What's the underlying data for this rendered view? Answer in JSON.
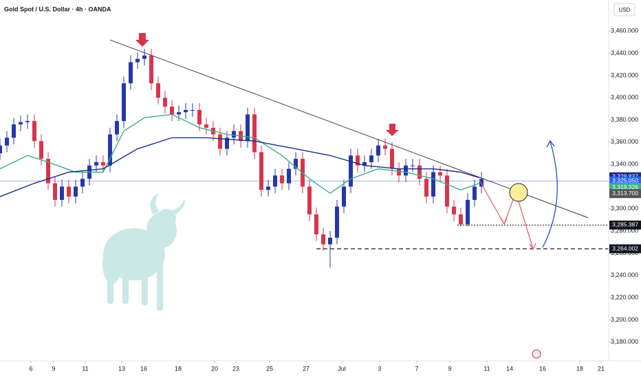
{
  "chart_data": {
    "type": "candlestick",
    "title": "Gold Spot / U.S. Dollar · 4h · OANDA",
    "currency": "USD",
    "up_color": "#2438a8",
    "down_color": "#d7354c",
    "xlim": [
      0,
      177
    ],
    "ylim": [
      3165,
      3488
    ],
    "xticks": [
      {
        "value": 9,
        "label": "6"
      },
      {
        "value": 15.6,
        "label": "9"
      },
      {
        "value": 24.8,
        "label": "11"
      },
      {
        "value": 35.4,
        "label": "13"
      },
      {
        "value": 41.8,
        "label": "16"
      },
      {
        "value": 51.8,
        "label": "18"
      },
      {
        "value": 62.4,
        "label": "20"
      },
      {
        "value": 68.6,
        "label": "23"
      },
      {
        "value": 78.4,
        "label": "25"
      },
      {
        "value": 89,
        "label": "27"
      },
      {
        "value": 99.4,
        "label": "Jul"
      },
      {
        "value": 110.4,
        "label": "3"
      },
      {
        "value": 121.2,
        "label": "7"
      },
      {
        "value": 130.8,
        "label": "9"
      },
      {
        "value": 141.6,
        "label": "11"
      },
      {
        "value": 148.2,
        "label": "14"
      },
      {
        "value": 157.8,
        "label": "16"
      },
      {
        "value": 168.6,
        "label": "18"
      },
      {
        "value": 174.8,
        "label": "21"
      }
    ],
    "yticks": [
      {
        "value": 3180,
        "label": "3,180.000"
      },
      {
        "value": 3200,
        "label": "3,200.000"
      },
      {
        "value": 3220,
        "label": "3,220.000"
      },
      {
        "value": 3240,
        "label": "3,240.000"
      },
      {
        "value": 3260,
        "label": "3,260.000"
      },
      {
        "value": 3280,
        "label": "3,280.000"
      },
      {
        "value": 3300,
        "label": "3,300.000"
      },
      {
        "value": 3320,
        "label": "3,320.000"
      },
      {
        "value": 3340,
        "label": "3,340.000"
      },
      {
        "value": 3360,
        "label": "3,360.000"
      },
      {
        "value": 3380,
        "label": "3,380.000"
      },
      {
        "value": 3400,
        "label": "3,400.000"
      },
      {
        "value": 3420,
        "label": "3,420.000"
      },
      {
        "value": 3440,
        "label": "3,440.000"
      },
      {
        "value": 3460,
        "label": "3,460.000"
      }
    ],
    "x": [
      0,
      2,
      4,
      6,
      8,
      10,
      12,
      14,
      16,
      18,
      20,
      22,
      24,
      26,
      28,
      30,
      32,
      34,
      36,
      38,
      40,
      42,
      44,
      46,
      48,
      50,
      52,
      54,
      56,
      58,
      60,
      62,
      64,
      66,
      68,
      70,
      72,
      74,
      76,
      78,
      80,
      82,
      84,
      86,
      88,
      90,
      92,
      94,
      96,
      98,
      100,
      102,
      104,
      106,
      108,
      110,
      112,
      114,
      116,
      118,
      120,
      122,
      124,
      126,
      128,
      130,
      132,
      134,
      136,
      138,
      140
    ],
    "open": [
      3350,
      3357,
      3364,
      3376,
      3378,
      3379,
      3361,
      3345,
      3323,
      3308,
      3320,
      3311,
      3320,
      3327,
      3339,
      3342,
      3339,
      3367,
      3379,
      3413,
      3432,
      3435,
      3438,
      3413,
      3400,
      3392,
      3385,
      3387,
      3389,
      3389,
      3376,
      3373,
      3367,
      3354,
      3364,
      3370,
      3361,
      3385,
      3351,
      3317,
      3320,
      3330,
      3323,
      3336,
      3345,
      3320,
      3295,
      3277,
      3268,
      3274,
      3302,
      3320,
      3348,
      3339,
      3342,
      3348,
      3357,
      3354,
      3336,
      3330,
      3339,
      3339,
      3327,
      3311,
      3333,
      3330,
      3302,
      3295,
      3286,
      3308,
      3320
    ],
    "high": [
      3363,
      3370,
      3382,
      3384,
      3385,
      3385,
      3367,
      3351,
      3329,
      3326,
      3326,
      3326,
      3333,
      3345,
      3348,
      3348,
      3373,
      3385,
      3419,
      3438,
      3441,
      3444,
      3444,
      3419,
      3406,
      3398,
      3393,
      3395,
      3395,
      3395,
      3382,
      3379,
      3373,
      3370,
      3376,
      3376,
      3391,
      3391,
      3357,
      3326,
      3336,
      3336,
      3342,
      3351,
      3351,
      3326,
      3301,
      3283,
      3280,
      3308,
      3326,
      3354,
      3354,
      3348,
      3354,
      3363,
      3363,
      3360,
      3342,
      3345,
      3345,
      3345,
      3333,
      3339,
      3339,
      3336,
      3308,
      3301,
      3314,
      3326,
      3333
    ],
    "low": [
      3344,
      3351,
      3358,
      3370,
      3372,
      3355,
      3339,
      3317,
      3302,
      3302,
      3305,
      3305,
      3314,
      3321,
      3333,
      3333,
      3333,
      3361,
      3373,
      3407,
      3426,
      3429,
      3407,
      3394,
      3386,
      3379,
      3379,
      3381,
      3383,
      3370,
      3367,
      3361,
      3348,
      3348,
      3358,
      3355,
      3355,
      3345,
      3311,
      3311,
      3314,
      3317,
      3317,
      3330,
      3314,
      3289,
      3271,
      3262,
      3247,
      3268,
      3296,
      3314,
      3333,
      3333,
      3336,
      3342,
      3348,
      3330,
      3324,
      3324,
      3333,
      3321,
      3305,
      3305,
      3324,
      3296,
      3289,
      3284,
      3284,
      3302,
      3314
    ],
    "close": [
      3357,
      3364,
      3376,
      3378,
      3379,
      3361,
      3345,
      3323,
      3308,
      3320,
      3311,
      3320,
      3327,
      3339,
      3342,
      3339,
      3367,
      3379,
      3413,
      3432,
      3435,
      3438,
      3413,
      3400,
      3392,
      3385,
      3387,
      3389,
      3389,
      3376,
      3373,
      3367,
      3354,
      3364,
      3370,
      3361,
      3385,
      3351,
      3317,
      3320,
      3330,
      3323,
      3336,
      3345,
      3320,
      3295,
      3277,
      3268,
      3274,
      3302,
      3320,
      3348,
      3339,
      3342,
      3348,
      3357,
      3354,
      3336,
      3330,
      3339,
      3339,
      3327,
      3311,
      3333,
      3330,
      3302,
      3295,
      3286,
      3308,
      3320,
      3327
    ],
    "lines": [
      {
        "color": "#3dae86",
        "x": [
          0,
          8,
          14,
          22,
          30,
          36,
          42,
          50,
          58,
          66,
          74,
          82,
          90,
          96,
          102,
          110,
          118,
          126,
          134,
          139.4
        ],
        "values": [
          3336,
          3348,
          3342,
          3333,
          3333,
          3370,
          3382,
          3385,
          3373,
          3367,
          3364,
          3348,
          3327,
          3314,
          3327,
          3336,
          3333,
          3327,
          3317,
          3323
        ]
      },
      {
        "color": "#1b2a8a",
        "x": [
          0,
          10,
          20,
          30,
          40,
          50,
          60,
          74,
          86,
          96,
          106,
          116,
          126,
          134,
          139.4
        ],
        "values": [
          3311,
          3323,
          3333,
          3336,
          3354,
          3364,
          3364,
          3361,
          3354,
          3348,
          3339,
          3336,
          3336,
          3333,
          3328
        ]
      }
    ],
    "trendline": {
      "color": "#3a3a3a",
      "x": [
        32,
        171
      ],
      "values": [
        3452,
        3292
      ]
    },
    "current_price_line": {
      "value": 3325.05,
      "color": "#9fb4e8"
    },
    "levels": [
      {
        "value": 3285.387,
        "from": 133,
        "style": "dotted"
      },
      {
        "value": 3264.002,
        "from": 92,
        "style": "dashed"
      }
    ],
    "price_labels": [
      {
        "value": 3328.837,
        "label": "3,328.837",
        "color": "#1b2a8a"
      },
      {
        "value": 3325.05,
        "label": "3,325.050",
        "color": "#2962ff"
      },
      {
        "value": 3319.326,
        "label": "3,319.326",
        "color": "#3dae86"
      },
      {
        "value": 3313.7,
        "label": "3,313.700",
        "color": "#555555"
      },
      {
        "value": 3285.387,
        "label": "3,285.387",
        "color": "#131722"
      },
      {
        "value": 3264.002,
        "label": "3,264.002",
        "color": "#131722"
      }
    ],
    "countdown": "02:01:42"
  }
}
